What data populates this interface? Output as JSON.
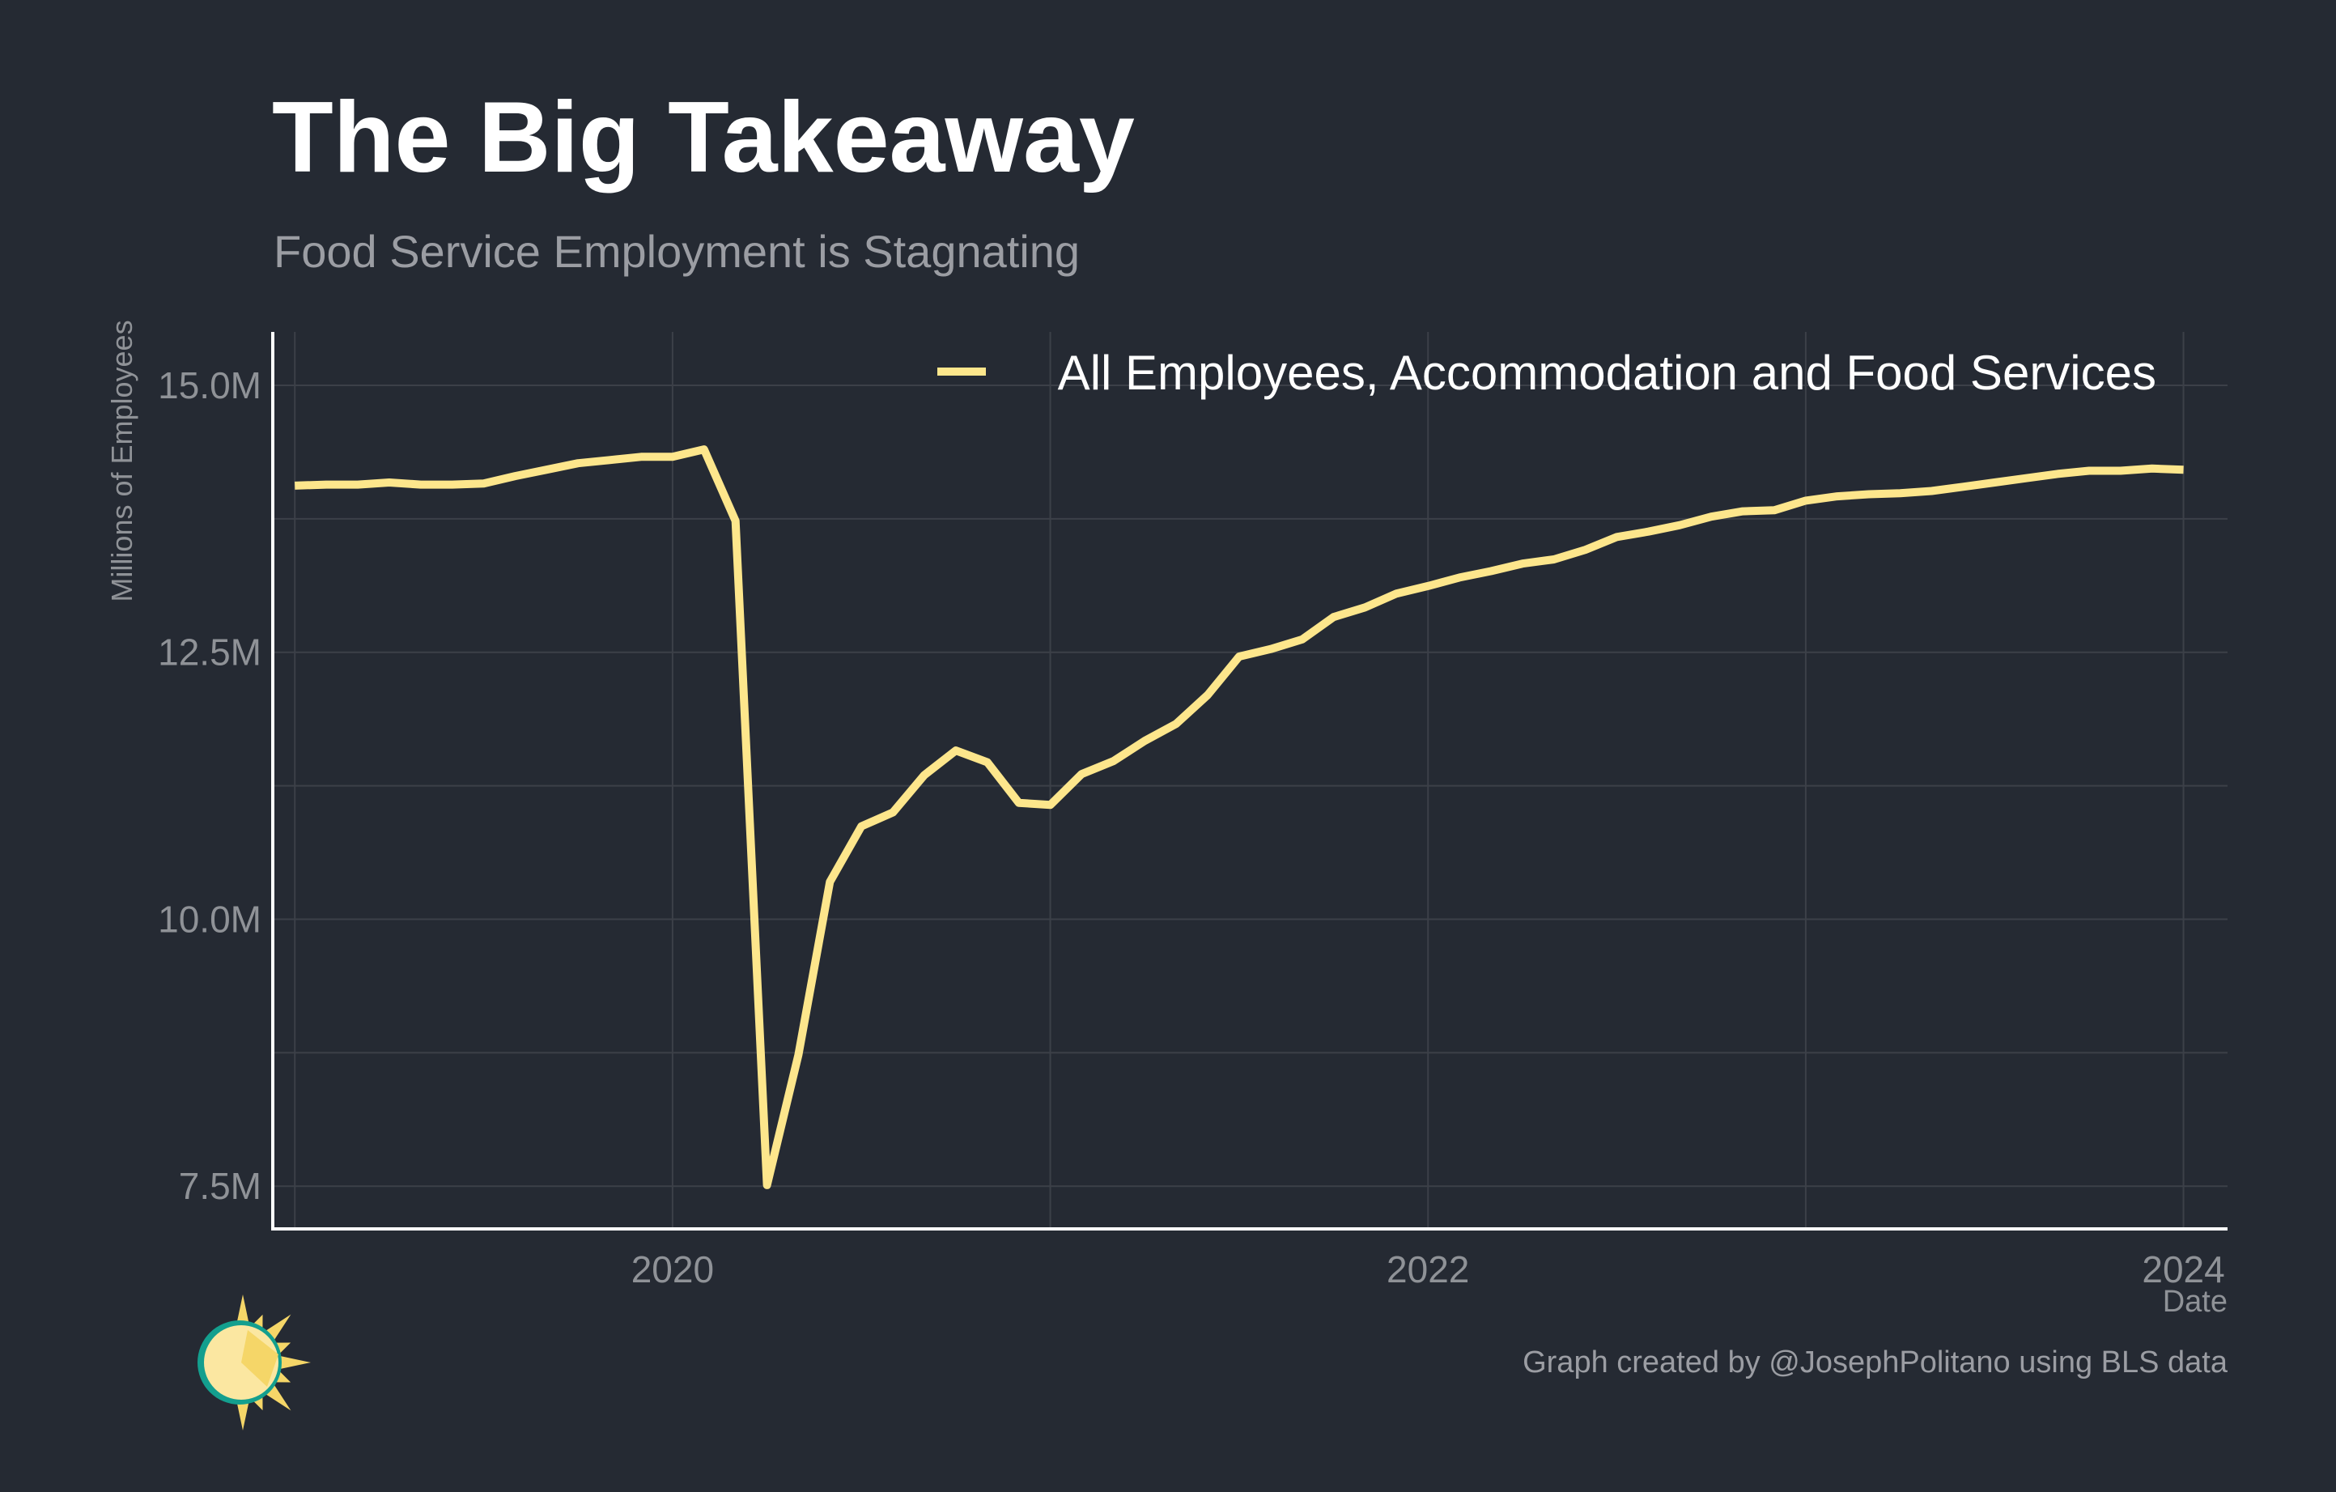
{
  "title": "The Big Takeaway",
  "subtitle": "Food Service Employment is Stagnating",
  "caption": "Graph created by @JosephPolitano using BLS data",
  "logo": {
    "icon": "sun-icon",
    "colors": [
      "#F5D668",
      "#FBE7A1",
      "#139F8E"
    ]
  },
  "colors": {
    "background": "#252A33",
    "line": "#FDE68C",
    "grid": "#3C4048",
    "axis": "#FFFFFF",
    "muted": "#8F9297"
  },
  "chart_data": {
    "type": "line",
    "title": "The Big Takeaway",
    "subtitle": "Food Service Employment is Stagnating",
    "xlabel": "Date",
    "ylabel": "Millions of Employees",
    "xlim": [
      "2018-12",
      "2024-03"
    ],
    "ylim": [
      7.1,
      15.5
    ],
    "x_ticks": [
      "2020",
      "2022",
      "2024"
    ],
    "y_ticks": [
      "7.5M",
      "10.0M",
      "12.5M",
      "15.0M"
    ],
    "grid": true,
    "legend": {
      "placement": "top-right"
    },
    "series": [
      {
        "name": "All Employees, Accommodation and Food Services",
        "color": "#FDE68C",
        "x": [
          "2019-01",
          "2019-02",
          "2019-03",
          "2019-04",
          "2019-05",
          "2019-06",
          "2019-07",
          "2019-08",
          "2019-09",
          "2019-10",
          "2019-11",
          "2019-12",
          "2020-01",
          "2020-02",
          "2020-03",
          "2020-04",
          "2020-05",
          "2020-06",
          "2020-07",
          "2020-08",
          "2020-09",
          "2020-10",
          "2020-11",
          "2020-12",
          "2021-01",
          "2021-02",
          "2021-03",
          "2021-04",
          "2021-05",
          "2021-06",
          "2021-07",
          "2021-08",
          "2021-09",
          "2021-10",
          "2021-11",
          "2021-12",
          "2022-01",
          "2022-02",
          "2022-03",
          "2022-04",
          "2022-05",
          "2022-06",
          "2022-07",
          "2022-08",
          "2022-09",
          "2022-10",
          "2022-11",
          "2022-12",
          "2023-01",
          "2023-02",
          "2023-03",
          "2023-04",
          "2023-05",
          "2023-06",
          "2023-07",
          "2023-08",
          "2023-09",
          "2023-10",
          "2023-11",
          "2023-12",
          "2024-01"
        ],
        "values": [
          14.06,
          14.07,
          14.07,
          14.09,
          14.07,
          14.07,
          14.08,
          14.15,
          14.21,
          14.27,
          14.3,
          14.33,
          14.33,
          14.4,
          13.73,
          7.51,
          8.73,
          10.35,
          10.87,
          11.0,
          11.35,
          11.58,
          11.47,
          11.09,
          11.07,
          11.36,
          11.48,
          11.67,
          11.83,
          12.1,
          12.46,
          12.53,
          12.62,
          12.83,
          12.92,
          13.05,
          13.12,
          13.2,
          13.26,
          13.33,
          13.37,
          13.46,
          13.58,
          13.63,
          13.69,
          13.77,
          13.82,
          13.83,
          13.92,
          13.96,
          13.98,
          13.99,
          14.01,
          14.05,
          14.09,
          14.13,
          14.17,
          14.2,
          14.2,
          14.22,
          14.21
        ]
      }
    ]
  }
}
